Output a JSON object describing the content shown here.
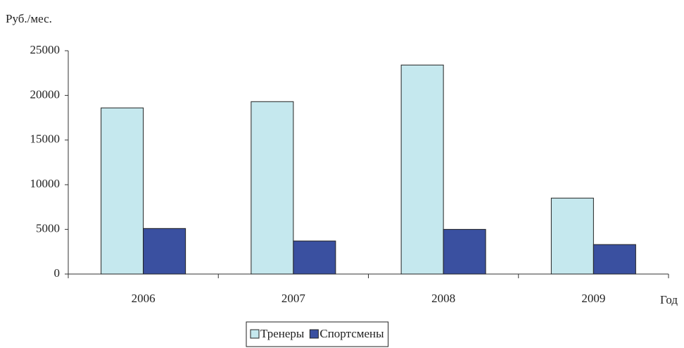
{
  "chart_data": {
    "type": "bar",
    "y_axis_label": "Руб./мес.",
    "x_axis_label": "Год",
    "categories": [
      "2006",
      "2007",
      "2008",
      "2009"
    ],
    "series": [
      {
        "name": "Тренеры",
        "color": "#c5e8ee",
        "values": [
          18600,
          19300,
          23400,
          8500
        ]
      },
      {
        "name": "Спортсмены",
        "color": "#3a50a0",
        "values": [
          5100,
          3700,
          5000,
          3300
        ]
      }
    ],
    "ylim": [
      0,
      25000
    ],
    "yticks": [
      0,
      5000,
      10000,
      15000,
      20000,
      25000
    ],
    "legend": "bottom"
  }
}
